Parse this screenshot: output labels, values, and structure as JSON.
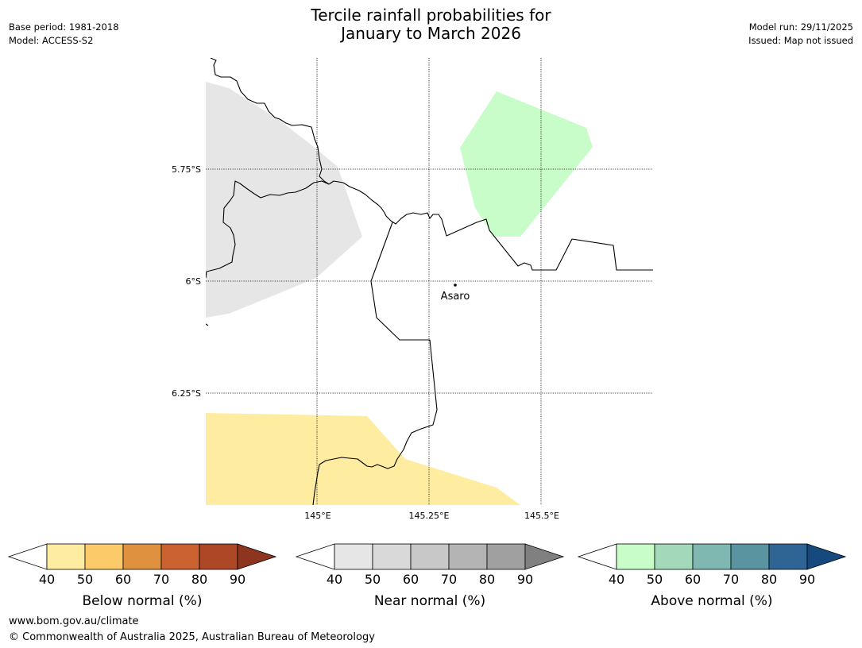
{
  "title": {
    "line1": "Tercile rainfall probabilities for",
    "line2": "January to March 2026"
  },
  "meta_left": {
    "base_period": "Base period: 1981-2018",
    "model": "Model: ACCESS-S2"
  },
  "meta_right": {
    "model_run": "Model run: 29/11/2025",
    "issued": "Issued: Map not issued"
  },
  "map": {
    "lat_labels": [
      "5.75°S",
      "6°S",
      "6.25°S"
    ],
    "lon_labels": [
      "145°E",
      "145.25°E",
      "145.5°E"
    ],
    "place_label": "Asaro",
    "colors": {
      "near_normal_region": "#e6e6e6",
      "above_normal_region": "#c8fcc8",
      "below_normal_region": "#feeca0"
    }
  },
  "colorbars": [
    {
      "label": "Below normal (%)",
      "ticks": [
        "40",
        "50",
        "60",
        "70",
        "80",
        "90"
      ],
      "colors": [
        "#ffffff",
        "#feeca0",
        "#fdca6a",
        "#e0913f",
        "#cb6232",
        "#ad4725",
        "#8e3520"
      ]
    },
    {
      "label": "Near normal (%)",
      "ticks": [
        "40",
        "50",
        "60",
        "70",
        "80",
        "90"
      ],
      "colors": [
        "#ffffff",
        "#e6e6e6",
        "#d9d9d9",
        "#c8c8c8",
        "#b4b4b4",
        "#a0a0a0",
        "#808080"
      ]
    },
    {
      "label": "Above normal (%)",
      "ticks": [
        "40",
        "50",
        "60",
        "70",
        "80",
        "90"
      ],
      "colors": [
        "#ffffff",
        "#c8fcc8",
        "#a3d8bb",
        "#7fb8b0",
        "#5a94a0",
        "#2f6595",
        "#16497e"
      ]
    }
  ],
  "footer": {
    "url": "www.bom.gov.au/climate",
    "copyright": "© Commonwealth of Australia 2025, Australian Bureau of Meteorology"
  }
}
